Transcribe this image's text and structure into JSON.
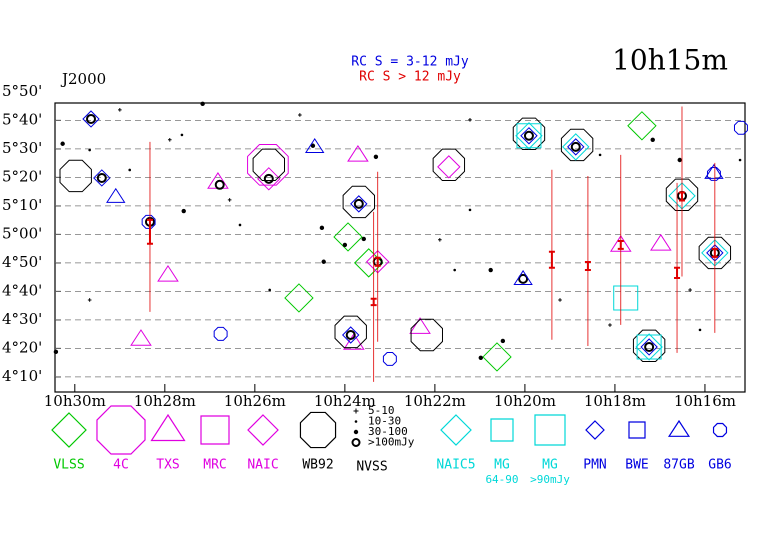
{
  "chart_data": {
    "type": "scatter",
    "title": "10h15m",
    "subtitle": "J2000",
    "annotations": [
      {
        "text": "RC S = 3-12 mJy",
        "color": "#0000e0"
      },
      {
        "text": "RC S > 12 mJy",
        "color": "#e00000"
      }
    ],
    "legend_label": "NVSS",
    "xlim": [
      630.44,
      615.11
    ],
    "ylim": [
      244.7,
      346.1
    ],
    "xticks": [
      {
        "value": 630,
        "label": "10h30m"
      },
      {
        "value": 628,
        "label": "10h28m"
      },
      {
        "value": 626,
        "label": "10h26m"
      },
      {
        "value": 624,
        "label": "10h24m"
      },
      {
        "value": 622,
        "label": "10h22m"
      },
      {
        "value": 620,
        "label": "10h20m"
      },
      {
        "value": 618,
        "label": "10h18m"
      },
      {
        "value": 616,
        "label": "10h16m"
      }
    ],
    "yticks": [
      {
        "value": 350,
        "label": "5°50'"
      },
      {
        "value": 340,
        "label": "5°40'"
      },
      {
        "value": 330,
        "label": "5°30'"
      },
      {
        "value": 320,
        "label": "5°20'"
      },
      {
        "value": 310,
        "label": "5°10'"
      },
      {
        "value": 300,
        "label": "5°00'"
      },
      {
        "value": 290,
        "label": "4°50'"
      },
      {
        "value": 280,
        "label": "4°40'"
      },
      {
        "value": 270,
        "label": "4°30'"
      },
      {
        "value": 260,
        "label": "4°20'"
      },
      {
        "value": 250,
        "label": "4°10'"
      }
    ],
    "grid": true,
    "series": [
      {
        "name": "VLSS",
        "color": "#00c800",
        "marker": "diamond",
        "x": [
          625.02,
          623.47,
          623.93,
          620.62,
          617.4
        ],
        "values": [
          277.7,
          290.0,
          299.1,
          257.0,
          338.1
        ]
      },
      {
        "name": "4C",
        "color": "#e000e0",
        "marker": "octagon",
        "x": [
          625.71
        ],
        "values": [
          324.4
        ]
      },
      {
        "name": "TXS",
        "color": "#e000e0",
        "marker": "triangle",
        "x": [
          626.82,
          627.93,
          628.53,
          623.8,
          622.33,
          616.98,
          617.87,
          623.71
        ],
        "values": [
          318.4,
          285.8,
          263.3,
          261.9,
          267.5,
          296.7,
          296.3,
          327.9
        ]
      },
      {
        "name": "MRC",
        "color": "#e000e0",
        "marker": "square",
        "x": [],
        "values": []
      },
      {
        "name": "NAIC",
        "color": "#e000e0",
        "marker": "diamond",
        "x": [
          621.69,
          623.27,
          625.69
        ],
        "values": [
          323.7,
          290.4,
          319.5
        ]
      },
      {
        "name": "WB92",
        "color": "#000000",
        "marker": "octagon",
        "x": [
          629.98,
          625.69,
          623.69,
          621.69,
          622.18,
          623.87,
          619.91,
          618.84,
          616.51,
          615.78,
          617.24
        ],
        "values": [
          320.5,
          324.4,
          311.4,
          324.4,
          264.7,
          265.8,
          335.3,
          331.4,
          313.9,
          293.5,
          260.9
        ]
      },
      {
        "name": "5-10",
        "color": "#000000",
        "marker": "plus",
        "x": [
          629.0,
          627.89,
          626.56,
          625.0,
          621.89,
          621.22,
          619.22,
          618.11,
          616.33,
          629.67
        ],
        "values": [
          343.7,
          333.2,
          312.1,
          341.9,
          298.1,
          340.2,
          277.0,
          268.2,
          280.5,
          277.0
        ]
      },
      {
        "name": "10-30",
        "color": "#000000",
        "marker": "dot",
        "x": [
          629.67,
          628.78,
          627.62,
          626.33,
          625.67,
          621.56,
          621.22,
          618.33,
          616.11,
          615.22
        ],
        "values": [
          329.6,
          322.6,
          334.9,
          303.3,
          280.5,
          287.5,
          308.6,
          327.9,
          266.5,
          326.1
        ]
      },
      {
        "name": "30-100",
        "color": "#000000",
        "marker": "dot",
        "x": [
          630.27,
          627.16,
          627.58,
          623.31,
          624.51,
          624.0,
          623.58,
          620.76,
          620.49,
          620.98,
          617.16,
          616.56,
          630.42,
          624.71,
          624.47
        ],
        "values": [
          331.8,
          345.8,
          308.2,
          327.2,
          302.3,
          296.3,
          298.4,
          287.5,
          262.6,
          256.7,
          333.2,
          326.1,
          258.8,
          331.1,
          290.4
        ]
      },
      {
        "name": ">100mJy",
        "color": "#000000",
        "marker": "ring",
        "x": [
          629.64,
          629.4,
          626.78,
          625.69,
          623.69,
          628.33,
          623.27,
          623.87,
          619.91,
          618.87,
          617.24,
          616.51,
          615.78,
          620.04
        ],
        "values": [
          340.5,
          319.8,
          317.4,
          319.5,
          310.7,
          304.4,
          290.4,
          264.7,
          334.6,
          330.7,
          260.5,
          313.5,
          293.5,
          284.4
        ]
      },
      {
        "name": "NAIC5",
        "color": "#00d8d8",
        "marker": "diamond",
        "x": [
          619.91,
          618.87,
          617.24,
          615.78,
          616.51
        ],
        "values": [
          334.6,
          330.7,
          260.5,
          293.5,
          313.5
        ]
      },
      {
        "name": "MG",
        "sublabel": "64-90",
        "color": "#00d8d8",
        "marker": "square",
        "x": [
          617.76,
          619.91,
          617.24
        ],
        "values": [
          277.7,
          334.6,
          260.5
        ]
      },
      {
        "name": "MG",
        "sublabel": ">90mJy",
        "color": "#00d8d8",
        "marker": "square",
        "x": [],
        "values": []
      },
      {
        "name": "PMN",
        "color": "#0000e0",
        "marker": "diamond",
        "x": [
          629.64,
          629.4,
          619.91,
          618.87,
          617.24,
          615.78,
          623.87,
          623.69
        ],
        "values": [
          340.5,
          319.8,
          334.6,
          330.7,
          260.5,
          293.5,
          264.7,
          310.7
        ]
      },
      {
        "name": "BWE",
        "color": "#0000e0",
        "marker": "square",
        "x": [],
        "values": []
      },
      {
        "name": "87GB",
        "color": "#0000e0",
        "marker": "triangle",
        "x": [
          629.09,
          624.67,
          620.04,
          615.8
        ],
        "values": [
          313.2,
          330.7,
          284.4,
          321.6
        ]
      },
      {
        "name": "GB6",
        "color": "#0000e0",
        "marker": "octagon",
        "x": [
          628.36,
          626.76,
          623.0,
          615.2,
          615.8
        ],
        "values": [
          304.4,
          265.1,
          256.3,
          337.4,
          321.2
        ]
      }
    ],
    "rc": {
      "color": "#e00000",
      "x": [
        628.33,
        623.27,
        623.36,
        619.4,
        618.6,
        617.87,
        616.62,
        616.51,
        615.78
      ],
      "values": [
        300.9,
        290.4,
        276.3,
        291.1,
        288.9,
        296.3,
        286.5,
        313.3,
        293.5
      ],
      "errors": [
        4.2,
        1.4,
        1.1,
        2.8,
        1.4,
        1.4,
        1.8,
        1.4,
        1.4
      ]
    }
  }
}
